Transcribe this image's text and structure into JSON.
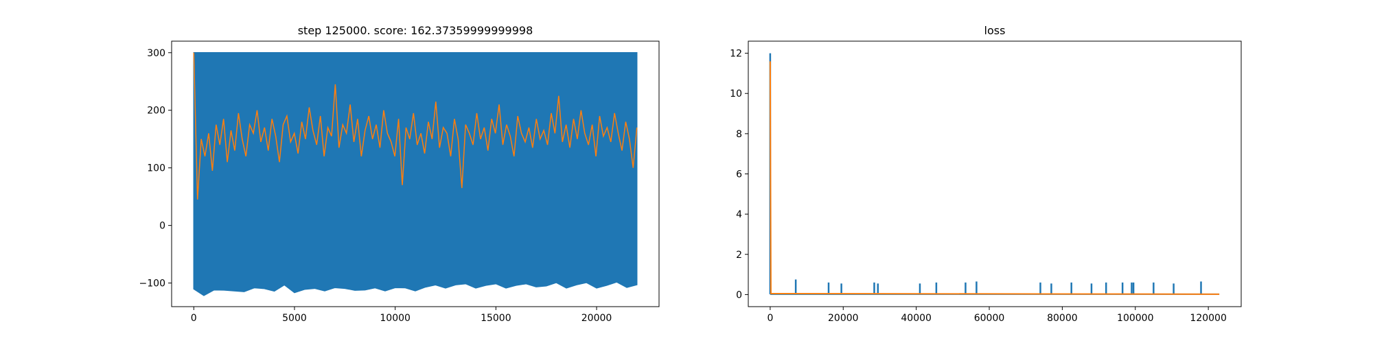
{
  "chart_data": [
    {
      "type": "line",
      "title": "step 125000. score: 162.37359999999998",
      "xlabel": "",
      "ylabel": "",
      "xlim": [
        -1100,
        23100
      ],
      "ylim": [
        -141,
        320
      ],
      "grid": false,
      "legend": "none",
      "x_ticks": [
        0,
        5000,
        10000,
        15000,
        20000
      ],
      "y_ticks": [
        -100,
        0,
        100,
        200,
        300
      ],
      "series": [
        {
          "color": "#1f77b4",
          "band": true,
          "description_values": {
            "x_start": 0,
            "x_end": 22000,
            "upper": 300,
            "lower_envelope": [
              [
                0,
                -115
              ],
              [
                500,
                -118
              ],
              [
                1000,
                -112
              ],
              [
                1500,
                -117
              ],
              [
                2000,
                -110
              ],
              [
                2500,
                -115
              ],
              [
                3000,
                -113
              ],
              [
                3500,
                -106
              ],
              [
                4000,
                -114
              ],
              [
                4500,
                -108
              ],
              [
                5000,
                -113
              ],
              [
                5500,
                -111
              ],
              [
                6000,
                -114
              ],
              [
                6500,
                -110
              ],
              [
                7000,
                -108
              ],
              [
                7500,
                -114
              ],
              [
                8000,
                -109
              ],
              [
                8500,
                -112
              ],
              [
                9000,
                -113
              ],
              [
                9500,
                -110
              ],
              [
                10000,
                -108
              ],
              [
                10500,
                -113
              ],
              [
                11000,
                -110
              ],
              [
                11500,
                -107
              ],
              [
                12000,
                -108
              ],
              [
                12500,
                -105
              ],
              [
                13000,
                -103
              ],
              [
                13500,
                -106
              ],
              [
                14000,
                -105
              ],
              [
                14500,
                -104
              ],
              [
                15000,
                -106
              ],
              [
                15500,
                -105
              ],
              [
                16000,
                -104
              ],
              [
                16500,
                -106
              ],
              [
                17000,
                -103
              ],
              [
                17500,
                -105
              ],
              [
                18000,
                -104
              ],
              [
                18500,
                -105
              ],
              [
                19000,
                -103
              ],
              [
                19500,
                -104
              ],
              [
                20000,
                -105
              ],
              [
                20500,
                -104
              ],
              [
                21000,
                -103
              ],
              [
                21500,
                -104
              ],
              [
                22000,
                -103
              ]
            ]
          }
        },
        {
          "color": "#ff7f0e",
          "x_start": 0,
          "x_end": 22000,
          "y": [
            300,
            45,
            150,
            120,
            160,
            95,
            175,
            140,
            185,
            110,
            165,
            130,
            195,
            150,
            120,
            175,
            160,
            200,
            145,
            170,
            130,
            185,
            155,
            110,
            175,
            190,
            145,
            160,
            125,
            180,
            150,
            205,
            165,
            140,
            190,
            120,
            170,
            155,
            245,
            135,
            175,
            160,
            210,
            145,
            185,
            120,
            165,
            190,
            150,
            175,
            135,
            200,
            160,
            145,
            120,
            185,
            70,
            170,
            150,
            195,
            140,
            160,
            125,
            180,
            150,
            215,
            135,
            170,
            160,
            120,
            185,
            150,
            65,
            175,
            160,
            140,
            195,
            150,
            170,
            130,
            185,
            160,
            210,
            140,
            175,
            155,
            120,
            190,
            160,
            145,
            170,
            135,
            185,
            150,
            165,
            140,
            195,
            160,
            225,
            145,
            175,
            135,
            185,
            150,
            200,
            160,
            140,
            175,
            120,
            190,
            155,
            170,
            145,
            195,
            160,
            130,
            180,
            150,
            100,
            170
          ]
        }
      ]
    },
    {
      "type": "line",
      "title": "loss",
      "xlabel": "",
      "ylabel": "",
      "xlim": [
        -6000,
        129000
      ],
      "ylim": [
        -0.6,
        12.6
      ],
      "grid": false,
      "legend": "none",
      "x_ticks": [
        0,
        20000,
        40000,
        60000,
        80000,
        100000,
        120000
      ],
      "y_ticks": [
        0,
        2,
        4,
        6,
        8,
        10,
        12
      ],
      "series": [
        {
          "color": "#1f77b4",
          "x_end": 123000,
          "baseline": 0.02,
          "spikes": [
            [
              0,
              12.0
            ],
            [
              7000,
              0.75
            ],
            [
              16000,
              0.6
            ],
            [
              19500,
              0.55
            ],
            [
              28500,
              0.6
            ],
            [
              29500,
              0.55
            ],
            [
              41000,
              0.55
            ],
            [
              45500,
              0.6
            ],
            [
              53500,
              0.6
            ],
            [
              56500,
              0.65
            ],
            [
              74000,
              0.6
            ],
            [
              77000,
              0.55
            ],
            [
              82500,
              0.6
            ],
            [
              88000,
              0.55
            ],
            [
              92000,
              0.6
            ],
            [
              96500,
              0.6
            ],
            [
              99000,
              0.6
            ],
            [
              99500,
              0.6
            ],
            [
              105000,
              0.6
            ],
            [
              110500,
              0.55
            ],
            [
              118000,
              0.65
            ]
          ]
        },
        {
          "color": "#ff7f0e",
          "x_end": 123000,
          "points": [
            [
              0,
              11.6
            ],
            [
              200,
              0.05
            ],
            [
              123000,
              0.02
            ]
          ]
        }
      ]
    }
  ]
}
